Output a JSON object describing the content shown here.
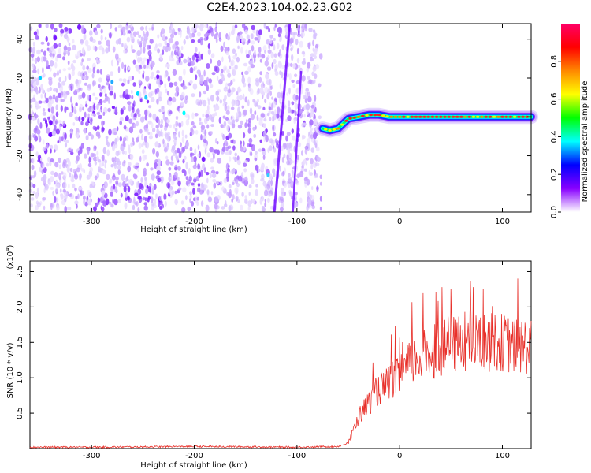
{
  "title": "C2E4.2023.104.02.23.G02",
  "chart_data": [
    {
      "type": "heatmap",
      "xlabel": "Height of straight line (km)",
      "ylabel": "Frequency (Hz)",
      "xlim": [
        -360,
        128
      ],
      "ylim": [
        -49,
        48
      ],
      "xticks": [
        -300,
        -200,
        -100,
        0,
        100
      ],
      "yticks": [
        -40,
        -20,
        0,
        20,
        40
      ],
      "grid": false,
      "colorbar": {
        "label": "Normalized spectral amplitude",
        "range": [
          0,
          1
        ],
        "ticks": [
          "0.0",
          "0.2",
          "0.4",
          "0.6",
          "0.8"
        ],
        "colors": [
          "#ffffff",
          "#8800ff",
          "#0000ff",
          "#00ffff",
          "#00ff00",
          "#ffff00",
          "#ff8800",
          "#ff0000",
          "#ff0066"
        ]
      },
      "noise_region_x": [
        -360,
        -75
      ],
      "signal_track": [
        {
          "x": -75,
          "y": -6
        },
        {
          "x": -68,
          "y": -7
        },
        {
          "x": -60,
          "y": -6
        },
        {
          "x": -50,
          "y": -1
        },
        {
          "x": -40,
          "y": 0
        },
        {
          "x": -30,
          "y": 1
        },
        {
          "x": -20,
          "y": 1
        },
        {
          "x": -10,
          "y": 0
        },
        {
          "x": 0,
          "y": 0
        },
        {
          "x": 20,
          "y": 0
        },
        {
          "x": 50,
          "y": 0
        },
        {
          "x": 80,
          "y": 0
        },
        {
          "x": 110,
          "y": 0
        },
        {
          "x": 128,
          "y": 0
        }
      ]
    },
    {
      "type": "line",
      "xlabel": "Height of straight line (km)",
      "ylabel": "SNR (10 * v/v)",
      "y_multiplier": "(x10",
      "y_multiplier_exp": "4",
      "y_multiplier_close": ")",
      "xlim": [
        -360,
        128
      ],
      "ylim": [
        0,
        2.65
      ],
      "xticks": [
        -300,
        -200,
        -100,
        0,
        100
      ],
      "yticks": [
        "0.5",
        "1.0",
        "1.5",
        "2.0",
        "2.5"
      ],
      "grid": false,
      "color": "#e8302a",
      "series": [
        {
          "x": [
            -360,
            -300,
            -200,
            -100,
            -60,
            -50,
            -45,
            -40,
            -35,
            -30,
            -25,
            -20,
            -15,
            -10,
            -5,
            0,
            5,
            10,
            20,
            30,
            40,
            50,
            60,
            70,
            80,
            90,
            100,
            110,
            120,
            128
          ],
          "values": [
            0.02,
            0.02,
            0.03,
            0.02,
            0.03,
            0.08,
            0.25,
            0.45,
            0.55,
            0.65,
            0.75,
            0.85,
            0.85,
            0.95,
            1.0,
            1.0,
            1.1,
            1.2,
            1.3,
            1.35,
            1.4,
            1.45,
            1.5,
            1.5,
            1.5,
            1.5,
            1.5,
            1.45,
            1.45,
            1.45
          ]
        }
      ]
    }
  ]
}
